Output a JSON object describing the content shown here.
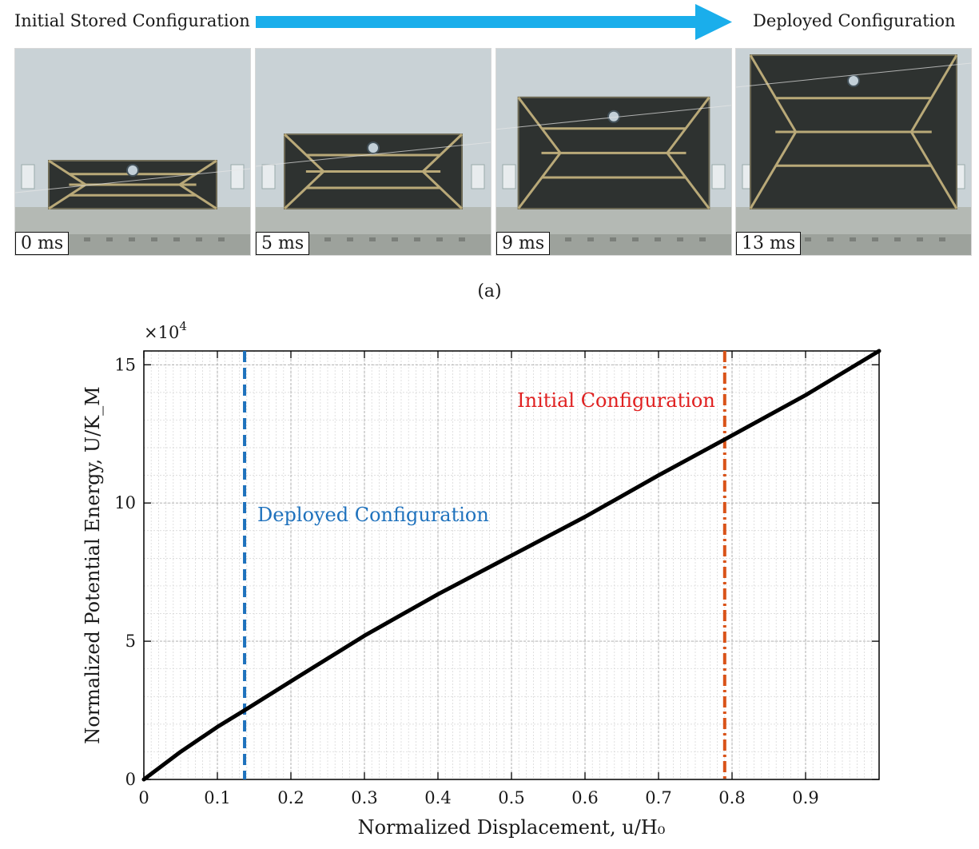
{
  "header": {
    "left_label": "Initial Stored Configuration",
    "right_label": "Deployed Configuration",
    "arrow_color": "#1aaeeb"
  },
  "frames": [
    {
      "time": "0 ms",
      "extension": 0.0
    },
    {
      "time": "5 ms",
      "extension": 0.25
    },
    {
      "time": "9 ms",
      "extension": 0.6
    },
    {
      "time": "13 ms",
      "extension": 1.0
    }
  ],
  "caption": "(a)",
  "chart_data": {
    "type": "line",
    "title": "",
    "xlabel": "Normalized Displacement, u/H₀",
    "ylabel": "Normalized Potential Energy, U/K_M",
    "y_multiplier_label": "×10",
    "y_multiplier_exponent": "4",
    "xlim": [
      0,
      1
    ],
    "ylim": [
      0,
      15.5
    ],
    "x_ticks": [
      0,
      0.1,
      0.2,
      0.3,
      0.4,
      0.5,
      0.6,
      0.7,
      0.8,
      0.9
    ],
    "x_tick_labels": [
      "0",
      "0.1",
      "0.2",
      "0.3",
      "0.4",
      "0.5",
      "0.6",
      "0.7",
      "0.8",
      "0.9"
    ],
    "y_ticks": [
      0,
      5,
      10,
      15
    ],
    "y_tick_labels": [
      "0",
      "5",
      "10",
      "15"
    ],
    "grid": true,
    "series": [
      {
        "name": "Potential energy",
        "color": "#000000",
        "x": [
          0,
          0.05,
          0.1,
          0.137,
          0.2,
          0.3,
          0.4,
          0.5,
          0.6,
          0.7,
          0.79,
          0.9,
          1.0
        ],
        "y": [
          0,
          1.0,
          1.9,
          2.5,
          3.55,
          5.2,
          6.7,
          8.1,
          9.5,
          11.0,
          12.3,
          13.9,
          15.5
        ]
      }
    ],
    "reference_lines": [
      {
        "x": 0.137,
        "label": "Deployed Configuration",
        "color": "#1f72bd",
        "style": "dashed"
      },
      {
        "x": 0.79,
        "label": "Initial Configuration",
        "color": "#d95319",
        "style": "dashdot",
        "label_color": "#e02020"
      }
    ]
  }
}
